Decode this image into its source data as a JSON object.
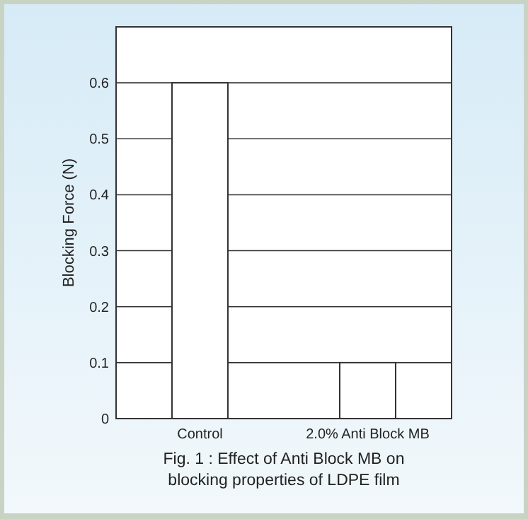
{
  "chart_data": {
    "type": "bar",
    "ylabel": "Blocking Force (N)",
    "categories": [
      "Control",
      "2.0% Anti Block MB"
    ],
    "values": [
      0.6,
      0.1
    ],
    "color": "#ffffff",
    "ylim": [
      0,
      0.7
    ],
    "yticks": [
      0,
      0.1,
      0.2,
      0.3,
      0.4,
      0.5,
      0.6
    ],
    "grid": "y",
    "annotations": [
      "Fig. 1 : Effect of Anti Block MB on blocking properties of LDPE film"
    ]
  }
}
